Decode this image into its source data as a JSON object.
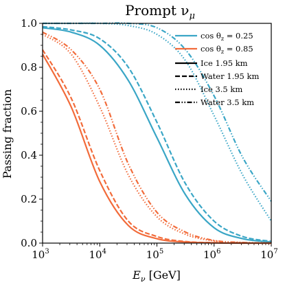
{
  "chart_data": {
    "type": "line",
    "title": "Prompt ν_μ",
    "title_parts": {
      "base": "Prompt ν",
      "sub": "μ"
    },
    "xlabel": "E_ν [GeV]",
    "xlabel_parts": {
      "base": "E",
      "sub": "ν",
      "unit": " [GeV]"
    },
    "ylabel": "Passing fraction",
    "xscale": "log",
    "xlim": [
      1000,
      10000000
    ],
    "ylim": [
      0.0,
      1.0
    ],
    "x_ticks": [
      1000,
      10000,
      100000,
      1000000,
      10000000
    ],
    "x_tick_labels": [
      {
        "base": "10",
        "exp": "3"
      },
      {
        "base": "10",
        "exp": "4"
      },
      {
        "base": "10",
        "exp": "5"
      },
      {
        "base": "10",
        "exp": "6"
      },
      {
        "base": "10",
        "exp": "7"
      }
    ],
    "y_ticks": [
      0.0,
      0.2,
      0.4,
      0.6,
      0.8,
      1.0
    ],
    "y_tick_labels": [
      "0.0",
      "0.2",
      "0.4",
      "0.6",
      "0.8",
      "1.0"
    ],
    "grid": false,
    "colors": {
      "cos_0.25": "#3aa6c6",
      "cos_0.85": "#f26b3a"
    },
    "legend": {
      "placement": "top-right",
      "entries": [
        {
          "label": "cos θ_z = 0.25",
          "parts": {
            "pre": "cos θ",
            "sub": "z",
            "post": " = 0.25"
          },
          "color": "#3aa6c6",
          "style": "solid"
        },
        {
          "label": "cos θ_z = 0.85",
          "parts": {
            "pre": "cos θ",
            "sub": "z",
            "post": " = 0.85"
          },
          "color": "#f26b3a",
          "style": "solid"
        },
        {
          "label": "Ice 1.95 km",
          "color": "#000000",
          "style": "solid"
        },
        {
          "label": "Water 1.95 km",
          "color": "#000000",
          "style": "dashed"
        },
        {
          "label": "Ice 3.5 km",
          "color": "#000000",
          "style": "dotted"
        },
        {
          "label": "Water 3.5 km",
          "color": "#000000",
          "style": "dashdotdot"
        }
      ]
    },
    "x": [
      1000,
      3162,
      10000,
      31623,
      100000,
      316228,
      1000000,
      3162278,
      10000000
    ],
    "series": [
      {
        "cos_theta_z": 0.25,
        "medium": "Ice",
        "depth_km": 1.95,
        "color": "#3aa6c6",
        "style": "solid",
        "values": [
          0.98,
          0.96,
          0.9,
          0.74,
          0.48,
          0.22,
          0.07,
          0.02,
          0.005
        ]
      },
      {
        "cos_theta_z": 0.25,
        "medium": "Water",
        "depth_km": 1.95,
        "color": "#3aa6c6",
        "style": "dashed",
        "values": [
          0.985,
          0.97,
          0.93,
          0.8,
          0.55,
          0.27,
          0.1,
          0.03,
          0.008
        ]
      },
      {
        "cos_theta_z": 0.25,
        "medium": "Ice",
        "depth_km": 3.5,
        "color": "#3aa6c6",
        "style": "dotted",
        "values": [
          1.0,
          1.0,
          1.0,
          0.99,
          0.95,
          0.83,
          0.58,
          0.31,
          0.1
        ]
      },
      {
        "cos_theta_z": 0.25,
        "medium": "Water",
        "depth_km": 3.5,
        "color": "#3aa6c6",
        "style": "dashdotdot",
        "values": [
          1.0,
          1.0,
          1.0,
          1.0,
          0.98,
          0.88,
          0.67,
          0.39,
          0.19
        ]
      },
      {
        "cos_theta_z": 0.85,
        "medium": "Ice",
        "depth_km": 1.95,
        "color": "#f26b3a",
        "style": "solid",
        "values": [
          0.86,
          0.62,
          0.28,
          0.08,
          0.02,
          0.005,
          0.001,
          0.0,
          0.0
        ]
      },
      {
        "cos_theta_z": 0.85,
        "medium": "Water",
        "depth_km": 1.95,
        "color": "#f26b3a",
        "style": "dashed",
        "values": [
          0.88,
          0.66,
          0.33,
          0.1,
          0.03,
          0.007,
          0.002,
          0.0,
          0.0
        ]
      },
      {
        "cos_theta_z": 0.85,
        "medium": "Ice",
        "depth_km": 3.5,
        "color": "#f26b3a",
        "style": "dotted",
        "values": [
          0.95,
          0.86,
          0.62,
          0.31,
          0.12,
          0.04,
          0.01,
          0.002,
          0.0
        ]
      },
      {
        "cos_theta_z": 0.85,
        "medium": "Water",
        "depth_km": 3.5,
        "color": "#f26b3a",
        "style": "dashdotdot",
        "values": [
          0.96,
          0.88,
          0.7,
          0.36,
          0.14,
          0.05,
          0.012,
          0.003,
          0.0
        ]
      }
    ]
  }
}
